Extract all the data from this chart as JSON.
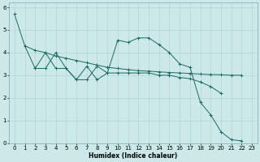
{
  "xlabel": "Humidex (Indice chaleur)",
  "background_color": "#cde8e8",
  "grid_color": "#b8d8d8",
  "line_color": "#1a6b62",
  "xlim": [
    -0.5,
    23.5
  ],
  "ylim": [
    0,
    6.2
  ],
  "xticks": [
    0,
    1,
    2,
    3,
    4,
    5,
    6,
    7,
    8,
    9,
    10,
    11,
    12,
    13,
    14,
    15,
    16,
    17,
    18,
    19,
    20,
    21,
    22,
    23
  ],
  "yticks": [
    0,
    1,
    2,
    3,
    4,
    5,
    6
  ],
  "series": [
    {
      "x": [
        0,
        1,
        2,
        3,
        4,
        5,
        6,
        7,
        8,
        9,
        10,
        11,
        12,
        13,
        14,
        15,
        16,
        17,
        18,
        19,
        20,
        21,
        22
      ],
      "y": [
        5.7,
        4.3,
        4.1,
        4.0,
        3.85,
        3.75,
        3.65,
        3.55,
        3.45,
        3.35,
        3.3,
        3.25,
        3.2,
        3.18,
        3.15,
        3.12,
        3.1,
        3.08,
        3.05,
        3.03,
        3.02,
        3.0,
        3.0
      ]
    },
    {
      "x": [
        1,
        2,
        3,
        4,
        5,
        6,
        7,
        8,
        9,
        10,
        11,
        12,
        13,
        14,
        15,
        16,
        17,
        18,
        19,
        20,
        21,
        22
      ],
      "y": [
        4.3,
        3.3,
        3.3,
        4.0,
        3.3,
        2.8,
        2.8,
        3.4,
        3.1,
        4.55,
        4.45,
        4.65,
        4.65,
        4.35,
        4.0,
        3.5,
        3.35,
        1.8,
        1.25,
        0.5,
        0.15,
        0.1
      ]
    },
    {
      "x": [
        2,
        3,
        4,
        5,
        6,
        7,
        8,
        9,
        10,
        11,
        12,
        13,
        14,
        15,
        16,
        17,
        18,
        19,
        20
      ],
      "y": [
        3.3,
        4.0,
        3.3,
        3.3,
        2.8,
        3.4,
        2.8,
        3.1,
        3.1,
        3.1,
        3.1,
        3.1,
        3.0,
        3.0,
        2.9,
        2.85,
        2.7,
        2.5,
        2.2
      ]
    }
  ]
}
